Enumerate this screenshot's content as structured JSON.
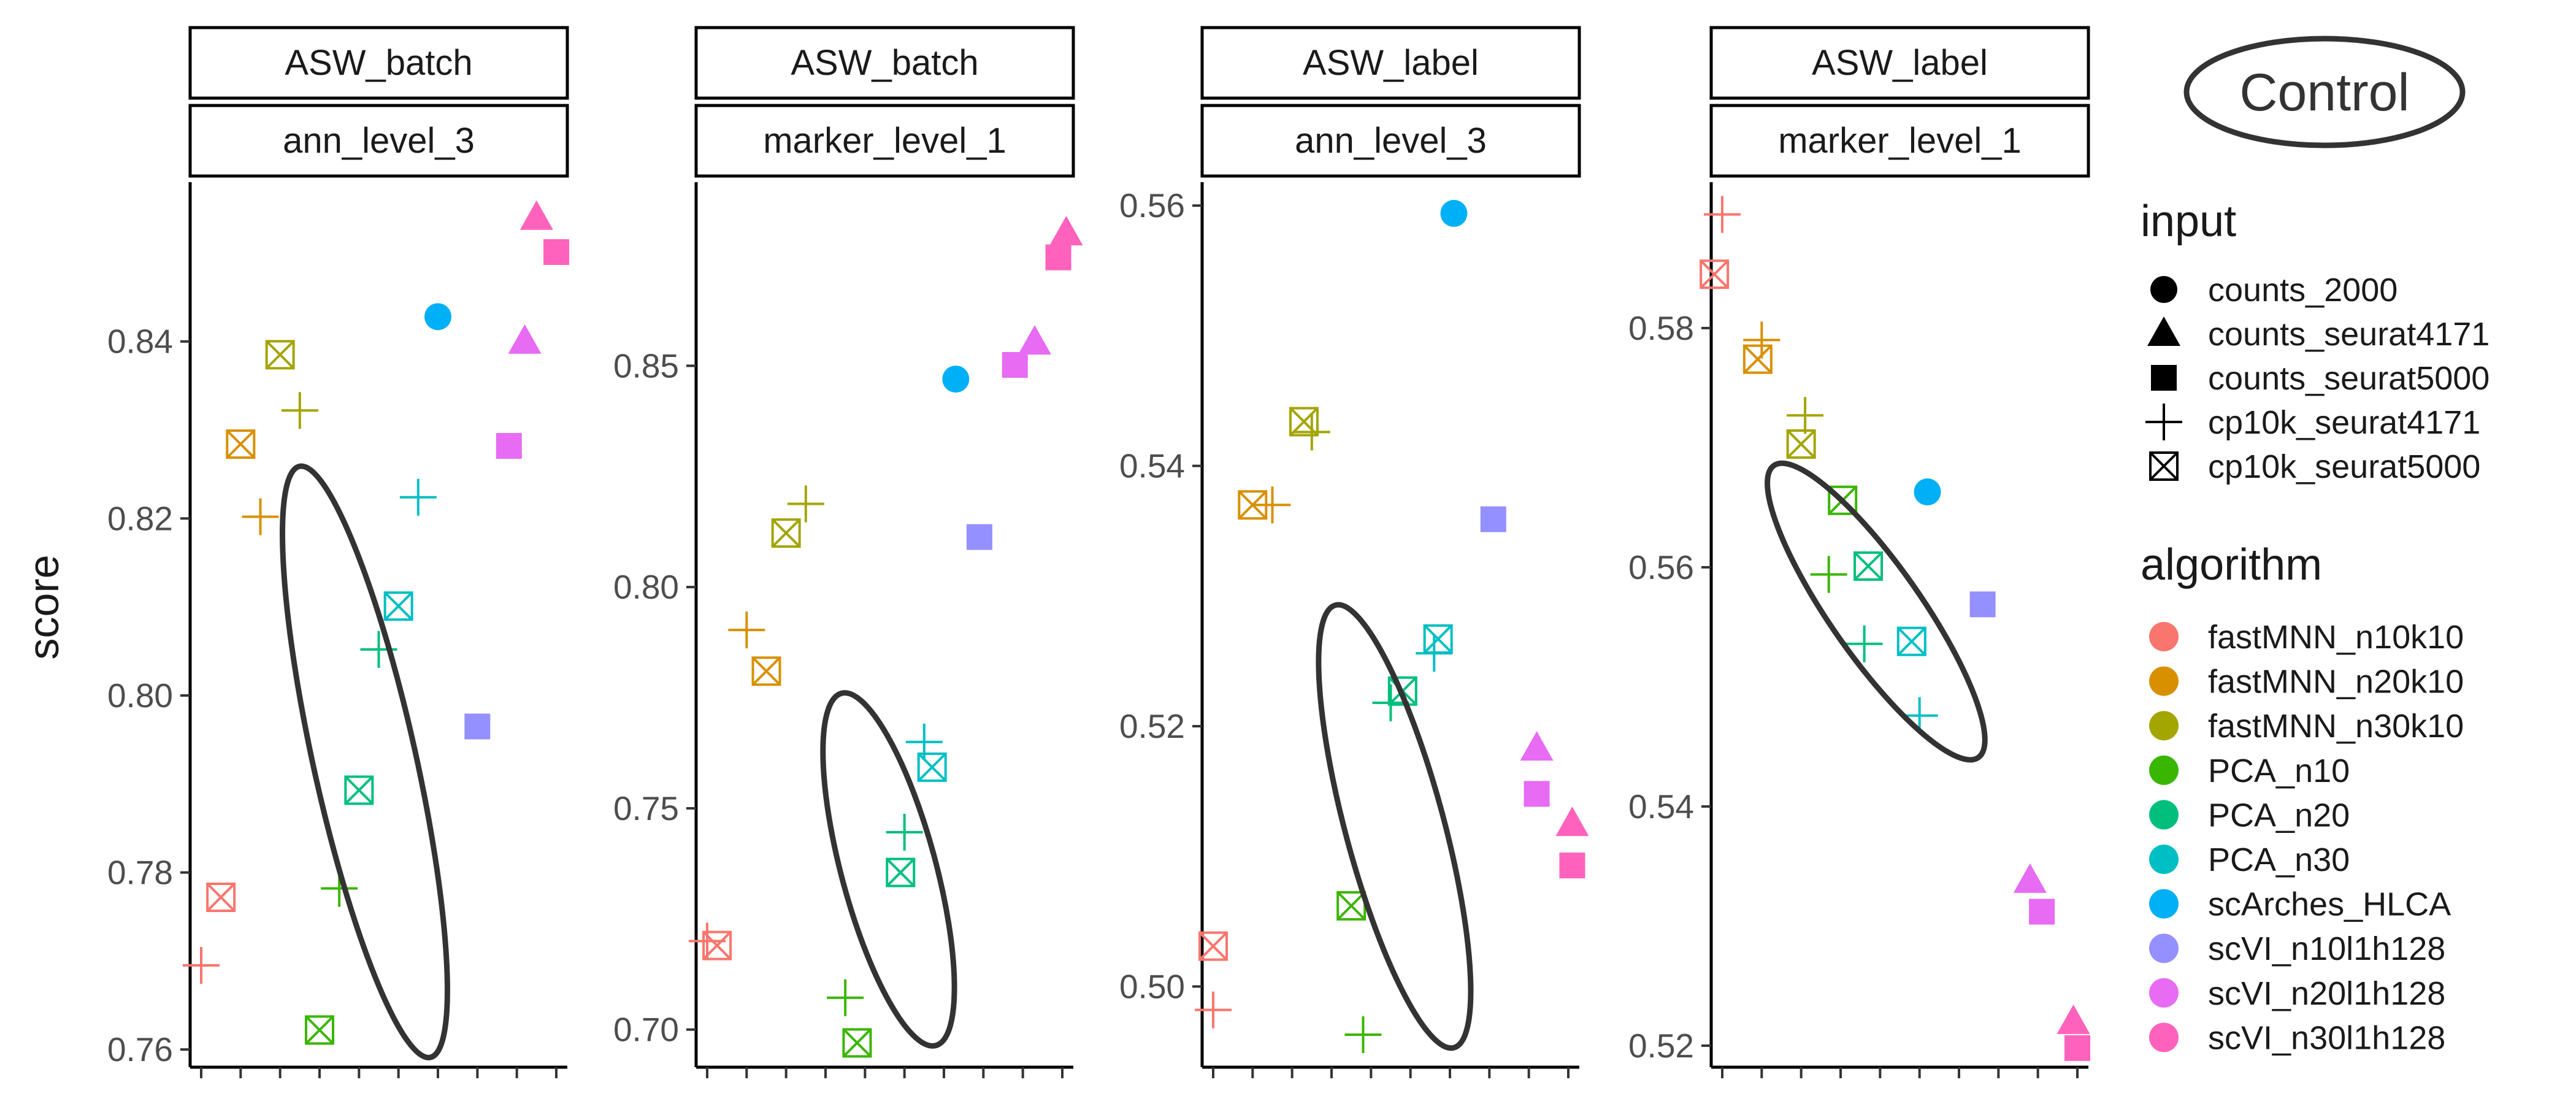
{
  "chart_data": {
    "type": "scatter",
    "ylabel": "score",
    "control_label": "Control",
    "inputs": [
      {
        "name": "counts_2000",
        "shape": "circle"
      },
      {
        "name": "counts_seurat4171",
        "shape": "triangle"
      },
      {
        "name": "counts_seurat5000",
        "shape": "square"
      },
      {
        "name": "cp10k_seurat4171",
        "shape": "plus"
      },
      {
        "name": "cp10k_seurat5000",
        "shape": "boxcross"
      }
    ],
    "algorithms": [
      {
        "name": "fastMNN_n10k10",
        "color": "#F8766D"
      },
      {
        "name": "fastMNN_n20k10",
        "color": "#D89000"
      },
      {
        "name": "fastMNN_n30k10",
        "color": "#A3A500"
      },
      {
        "name": "PCA_n10",
        "color": "#39B600"
      },
      {
        "name": "PCA_n20",
        "color": "#00BF7D"
      },
      {
        "name": "PCA_n30",
        "color": "#00BFC4"
      },
      {
        "name": "scArches_HLCA",
        "color": "#00B0F6"
      },
      {
        "name": "scVI_n10l1h128",
        "color": "#9590FF"
      },
      {
        "name": "scVI_n20l1h128",
        "color": "#E76BF3"
      },
      {
        "name": "scVI_n30l1h128",
        "color": "#FF62BC"
      }
    ],
    "legend": {
      "input_title": "input",
      "algorithm_title": "algorithm"
    },
    "panels": [
      {
        "metric": "ASW_batch",
        "level": "ann_level_3",
        "ylim": [
          0.758,
          0.858
        ],
        "yticks": [
          {
            "v": 0.76,
            "label": "0.76"
          },
          {
            "v": 0.78,
            "label": "0.78"
          },
          {
            "v": 0.8,
            "label": "0.80"
          },
          {
            "v": 0.82,
            "label": "0.82"
          },
          {
            "v": 0.84,
            "label": "0.84"
          }
        ],
        "points": [
          {
            "x": 1,
            "y": 0.7695,
            "a": 0,
            "s": "plus"
          },
          {
            "x": 1.5,
            "y": 0.7772,
            "a": 0,
            "s": "boxcross"
          },
          {
            "x": 2,
            "y": 0.8284,
            "a": 1,
            "s": "boxcross"
          },
          {
            "x": 2.5,
            "y": 0.8202,
            "a": 1,
            "s": "plus"
          },
          {
            "x": 3,
            "y": 0.8385,
            "a": 2,
            "s": "boxcross"
          },
          {
            "x": 3.5,
            "y": 0.8322,
            "a": 2,
            "s": "plus"
          },
          {
            "x": 4,
            "y": 0.7622,
            "a": 3,
            "s": "boxcross"
          },
          {
            "x": 4.5,
            "y": 0.7782,
            "a": 3,
            "s": "plus"
          },
          {
            "x": 5,
            "y": 0.7893,
            "a": 4,
            "s": "boxcross"
          },
          {
            "x": 5.5,
            "y": 0.8052,
            "a": 4,
            "s": "plus"
          },
          {
            "x": 6,
            "y": 0.8101,
            "a": 5,
            "s": "boxcross"
          },
          {
            "x": 6.5,
            "y": 0.8224,
            "a": 5,
            "s": "plus"
          },
          {
            "x": 7,
            "y": 0.8428,
            "a": 6,
            "s": "circle"
          },
          {
            "x": 8,
            "y": 0.7965,
            "a": 7,
            "s": "square"
          },
          {
            "x": 8.8,
            "y": 0.8282,
            "a": 8,
            "s": "square"
          },
          {
            "x": 9.2,
            "y": 0.84,
            "a": 8,
            "s": "triangle"
          },
          {
            "x": 9.5,
            "y": 0.854,
            "a": 9,
            "s": "triangle"
          },
          {
            "x": 10,
            "y": 0.8501,
            "a": 9,
            "s": "square"
          }
        ],
        "ellipse": {
          "cx": 5.15,
          "cy": 0.7925,
          "rx": 1.3,
          "ry": 0.0342,
          "angle": 77.5
        }
      },
      {
        "metric": "ASW_batch",
        "level": "marker_level_1",
        "ylim": [
          0.6915,
          0.8915
        ],
        "yticks": [
          {
            "v": 0.7,
            "label": "0.70"
          },
          {
            "v": 0.75,
            "label": "0.75"
          },
          {
            "v": 0.8,
            "label": "0.80"
          },
          {
            "v": 0.85,
            "label": "0.85"
          }
        ],
        "points": [
          {
            "x": 1,
            "y": 0.72,
            "a": 0,
            "s": "plus"
          },
          {
            "x": 1.25,
            "y": 0.719,
            "a": 0,
            "s": "boxcross"
          },
          {
            "x": 2,
            "y": 0.7903,
            "a": 1,
            "s": "plus"
          },
          {
            "x": 2.5,
            "y": 0.781,
            "a": 1,
            "s": "boxcross"
          },
          {
            "x": 3.5,
            "y": 0.8188,
            "a": 2,
            "s": "plus"
          },
          {
            "x": 3,
            "y": 0.8122,
            "a": 2,
            "s": "boxcross"
          },
          {
            "x": 4.5,
            "y": 0.7072,
            "a": 3,
            "s": "plus"
          },
          {
            "x": 4.8,
            "y": 0.697,
            "a": 3,
            "s": "boxcross"
          },
          {
            "x": 6,
            "y": 0.7446,
            "a": 4,
            "s": "plus"
          },
          {
            "x": 5.9,
            "y": 0.7355,
            "a": 4,
            "s": "boxcross"
          },
          {
            "x": 6.5,
            "y": 0.765,
            "a": 5,
            "s": "plus"
          },
          {
            "x": 6.7,
            "y": 0.7593,
            "a": 5,
            "s": "boxcross"
          },
          {
            "x": 7.3,
            "y": 0.847,
            "a": 6,
            "s": "circle"
          },
          {
            "x": 7.9,
            "y": 0.8113,
            "a": 7,
            "s": "square"
          },
          {
            "x": 8.8,
            "y": 0.8502,
            "a": 8,
            "s": "square"
          },
          {
            "x": 9.3,
            "y": 0.8553,
            "a": 8,
            "s": "triangle"
          },
          {
            "x": 9.9,
            "y": 0.8745,
            "a": 9,
            "s": "square"
          },
          {
            "x": 10.1,
            "y": 0.88,
            "a": 9,
            "s": "triangle"
          }
        ],
        "ellipse": {
          "cx": 5.6,
          "cy": 0.7362,
          "rx": 1.2,
          "ry": 0.0412,
          "angle": 75
        }
      },
      {
        "metric": "ASW_label",
        "level": "ann_level_3",
        "ylim": [
          0.4938,
          0.5618
        ],
        "yticks": [
          {
            "v": 0.5,
            "label": "0.50"
          },
          {
            "v": 0.52,
            "label": "0.52"
          },
          {
            "v": 0.54,
            "label": "0.54"
          },
          {
            "v": 0.56,
            "label": "0.56"
          }
        ],
        "points": [
          {
            "x": 1,
            "y": 0.4982,
            "a": 0,
            "s": "plus"
          },
          {
            "x": 1,
            "y": 0.5031,
            "a": 0,
            "s": "boxcross"
          },
          {
            "x": 2,
            "y": 0.537,
            "a": 1,
            "s": "boxcross"
          },
          {
            "x": 2.5,
            "y": 0.537,
            "a": 1,
            "s": "plus"
          },
          {
            "x": 3.3,
            "y": 0.5434,
            "a": 2,
            "s": "boxcross"
          },
          {
            "x": 3.5,
            "y": 0.5426,
            "a": 2,
            "s": "plus"
          },
          {
            "x": 4.5,
            "y": 0.5062,
            "a": 3,
            "s": "boxcross"
          },
          {
            "x": 4.8,
            "y": 0.4963,
            "a": 3,
            "s": "plus"
          },
          {
            "x": 5.5,
            "y": 0.5218,
            "a": 4,
            "s": "plus"
          },
          {
            "x": 5.8,
            "y": 0.5227,
            "a": 4,
            "s": "boxcross"
          },
          {
            "x": 6.6,
            "y": 0.5256,
            "a": 5,
            "s": "plus"
          },
          {
            "x": 6.7,
            "y": 0.5267,
            "a": 5,
            "s": "boxcross"
          },
          {
            "x": 7.1,
            "y": 0.5594,
            "a": 6,
            "s": "circle"
          },
          {
            "x": 8.1,
            "y": 0.5359,
            "a": 7,
            "s": "square"
          },
          {
            "x": 9.2,
            "y": 0.5183,
            "a": 8,
            "s": "triangle"
          },
          {
            "x": 9.2,
            "y": 0.5148,
            "a": 8,
            "s": "square"
          },
          {
            "x": 10.1,
            "y": 0.5125,
            "a": 9,
            "s": "triangle"
          },
          {
            "x": 10.1,
            "y": 0.5093,
            "a": 9,
            "s": "square"
          }
        ],
        "ellipse": {
          "cx": 5.6,
          "cy": 0.5123,
          "rx": 1.25,
          "ry": 0.0176,
          "angle": 75
        }
      },
      {
        "metric": "ASW_label",
        "level": "marker_level_1",
        "ylim": [
          0.5182,
          0.5922
        ],
        "yticks": [
          {
            "v": 0.52,
            "label": "0.52"
          },
          {
            "v": 0.54,
            "label": "0.54"
          },
          {
            "v": 0.56,
            "label": "0.56"
          },
          {
            "v": 0.58,
            "label": "0.58"
          }
        ],
        "points": [
          {
            "x": 1,
            "y": 0.5895,
            "a": 0,
            "s": "plus"
          },
          {
            "x": 0.8,
            "y": 0.5845,
            "a": 0,
            "s": "boxcross"
          },
          {
            "x": 2,
            "y": 0.579,
            "a": 1,
            "s": "plus"
          },
          {
            "x": 1.9,
            "y": 0.5774,
            "a": 1,
            "s": "boxcross"
          },
          {
            "x": 3.1,
            "y": 0.5727,
            "a": 2,
            "s": "plus"
          },
          {
            "x": 3,
            "y": 0.5703,
            "a": 2,
            "s": "boxcross"
          },
          {
            "x": 3.7,
            "y": 0.5594,
            "a": 3,
            "s": "plus"
          },
          {
            "x": 4.05,
            "y": 0.5656,
            "a": 3,
            "s": "boxcross"
          },
          {
            "x": 4.6,
            "y": 0.5536,
            "a": 4,
            "s": "plus"
          },
          {
            "x": 4.7,
            "y": 0.5601,
            "a": 4,
            "s": "boxcross"
          },
          {
            "x": 6,
            "y": 0.5476,
            "a": 5,
            "s": "plus"
          },
          {
            "x": 5.8,
            "y": 0.5538,
            "a": 5,
            "s": "boxcross"
          },
          {
            "x": 6.2,
            "y": 0.5663,
            "a": 6,
            "s": "circle"
          },
          {
            "x": 7.6,
            "y": 0.5569,
            "a": 7,
            "s": "square"
          },
          {
            "x": 8.8,
            "y": 0.5338,
            "a": 8,
            "s": "triangle"
          },
          {
            "x": 9.1,
            "y": 0.5312,
            "a": 8,
            "s": "square"
          },
          {
            "x": 9.9,
            "y": 0.522,
            "a": 9,
            "s": "triangle"
          },
          {
            "x": 10,
            "y": 0.5198,
            "a": 9,
            "s": "square"
          }
        ],
        "ellipse": {
          "cx": 4.9,
          "cy": 0.5563,
          "rx": 1.15,
          "ry": 0.0149,
          "angle": 55
        }
      }
    ]
  }
}
